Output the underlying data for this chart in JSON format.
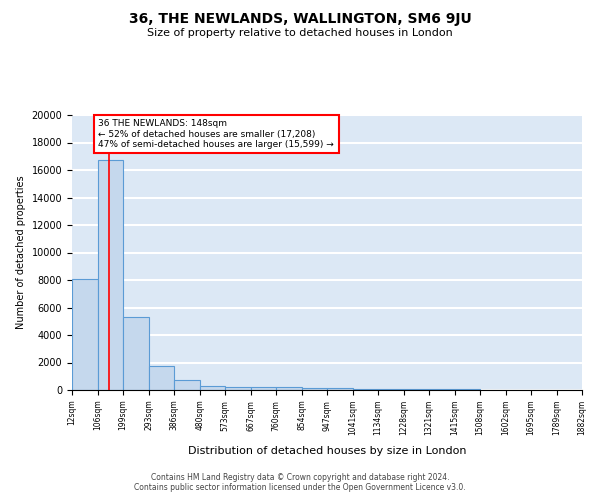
{
  "title": "36, THE NEWLANDS, WALLINGTON, SM6 9JU",
  "subtitle": "Size of property relative to detached houses in London",
  "xlabel": "Distribution of detached houses by size in London",
  "ylabel": "Number of detached properties",
  "bin_edges": [
    12,
    106,
    199,
    293,
    386,
    480,
    573,
    667,
    760,
    854,
    947,
    1041,
    1134,
    1228,
    1321,
    1415,
    1508,
    1602,
    1695,
    1789,
    1882
  ],
  "bar_heights": [
    8100,
    16700,
    5300,
    1750,
    750,
    300,
    230,
    210,
    200,
    150,
    120,
    100,
    80,
    60,
    50,
    40,
    35,
    30,
    25,
    20
  ],
  "bar_color": "#c5d8ed",
  "bar_edge_color": "#5b9bd5",
  "red_line_x": 148,
  "annotation_text": "36 THE NEWLANDS: 148sqm\n← 52% of detached houses are smaller (17,208)\n47% of semi-detached houses are larger (15,599) →",
  "annotation_box_color": "white",
  "annotation_box_edge_color": "red",
  "bg_color": "#dce8f5",
  "grid_color": "white",
  "footnote": "Contains HM Land Registry data © Crown copyright and database right 2024.\nContains public sector information licensed under the Open Government Licence v3.0.",
  "ylim": [
    0,
    20000
  ],
  "yticks": [
    0,
    2000,
    4000,
    6000,
    8000,
    10000,
    12000,
    14000,
    16000,
    18000,
    20000
  ]
}
